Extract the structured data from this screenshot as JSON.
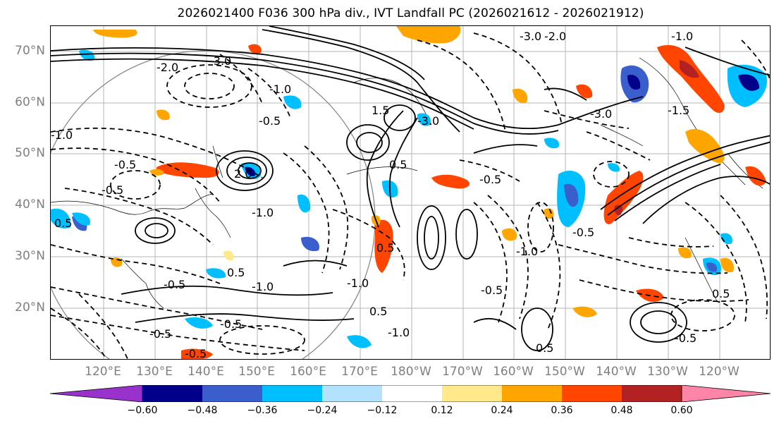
{
  "title": "2026021400 F036 300 hPa div., IVT Landfall PC (2026021612 - 2026021912)",
  "lat_labels": [
    "70°N",
    "60°N",
    "50°N",
    "40°N",
    "30°N",
    "20°N"
  ],
  "lon_labels": [
    "120°E",
    "130°E",
    "140°E",
    "150°E",
    "160°E",
    "170°E",
    "180°W",
    "170°W",
    "160°W",
    "150°W",
    "140°W",
    "130°W",
    "120°W"
  ],
  "colorbar": {
    "colors": [
      "#9932CC",
      "#00008B",
      "#3A5FCD",
      "#00BFFF",
      "#B2E2FF",
      "#FFFFFF",
      "#FFE98A",
      "#FFA500",
      "#FF4500",
      "#B22222",
      "#FF85A8"
    ],
    "tick_labels": [
      "−0.60",
      "−0.48",
      "−0.36",
      "−0.24",
      "−0.12",
      "0.12",
      "0.24",
      "0.36",
      "0.48",
      "0.60"
    ]
  },
  "contour_labels": [
    "-2.0",
    "-3.0",
    "-1.0",
    "-0.5",
    "-3.0",
    "1.5",
    "0.5",
    "-0.5",
    "-1.0",
    "-0.5",
    "2.0",
    "0.5",
    "-1.0",
    "-0.5",
    "0.5",
    "-1.0",
    "-0.5",
    "-0.5",
    "-0.5",
    "-3.0",
    "-2.0",
    "-1.0",
    "-3.0",
    "-1.5",
    "-0.5",
    "0.5",
    "-1.0",
    "-0.5",
    "0.5",
    "-1.0",
    "-1.0",
    "0.5",
    "-0.5",
    "0.5",
    "-0.5"
  ]
}
